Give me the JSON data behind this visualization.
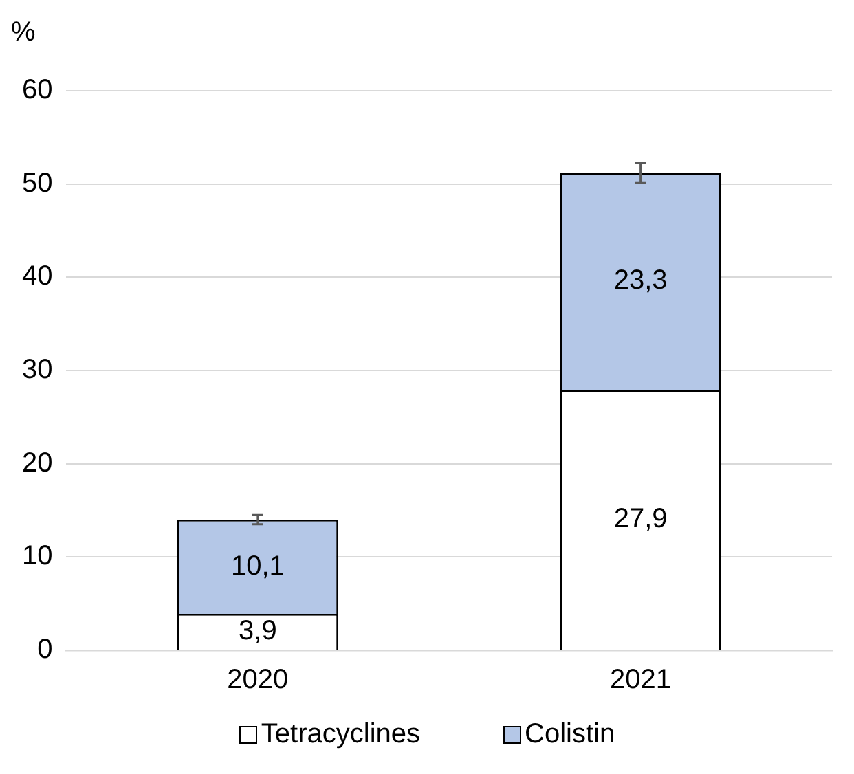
{
  "chart_data": {
    "type": "bar",
    "stacked": true,
    "ylabel": "%",
    "categories": [
      "2020",
      "2021"
    ],
    "series": [
      {
        "name": "Tetracyclines",
        "color": "#ffffff",
        "values": [
          3.9,
          27.9
        ],
        "value_labels": [
          "3,9",
          "27,9"
        ]
      },
      {
        "name": "Colistin",
        "color": "#b4c7e7",
        "values": [
          10.1,
          23.3
        ],
        "value_labels": [
          "10,1",
          "23,3"
        ],
        "errors": [
          0.5,
          1.1
        ]
      }
    ],
    "ylim": [
      0,
      60
    ],
    "yticks": [
      0,
      10,
      20,
      30,
      40,
      50,
      60
    ],
    "grid": "y",
    "legend": "bottom"
  }
}
